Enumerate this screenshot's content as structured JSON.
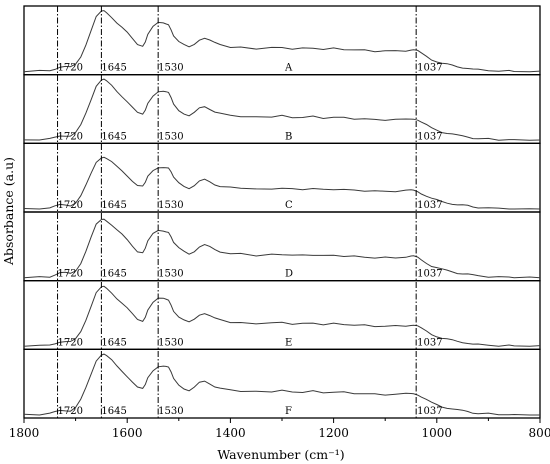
{
  "chart_data": {
    "type": "line",
    "title": "",
    "xlabel": "Wavenumber (cm⁻¹)",
    "ylabel": "Absorbance (a.u)",
    "xlim": [
      1800,
      800
    ],
    "x_reversed": true,
    "x_ticks": [
      "1800",
      "1600",
      "1400",
      "1200",
      "1000",
      "800"
    ],
    "x_tick_values": [
      1800,
      1600,
      1400,
      1200,
      1000,
      800
    ],
    "y_ticks_shown": false,
    "grid": false,
    "legend": "none",
    "reference_lines": [
      1735,
      1650,
      1540,
      1040
    ],
    "peak_labels": [
      "1720",
      "1645",
      "1530",
      "1037"
    ],
    "panels": [
      {
        "name": "A",
        "scale": 1.0
      },
      {
        "name": "B",
        "scale": 1.0
      },
      {
        "name": "C",
        "scale": 0.86
      },
      {
        "name": "D",
        "scale": 0.97
      },
      {
        "name": "E",
        "scale": 0.98
      },
      {
        "name": "F",
        "scale": 1.0
      }
    ],
    "spectrum_profile": {
      "x": [
        1800,
        1770,
        1750,
        1740,
        1730,
        1720,
        1710,
        1700,
        1690,
        1680,
        1670,
        1660,
        1650,
        1645,
        1640,
        1630,
        1620,
        1610,
        1600,
        1590,
        1580,
        1570,
        1565,
        1560,
        1550,
        1540,
        1530,
        1525,
        1520,
        1515,
        1510,
        1500,
        1490,
        1480,
        1470,
        1460,
        1450,
        1440,
        1430,
        1420,
        1400,
        1380,
        1350,
        1320,
        1300,
        1280,
        1260,
        1240,
        1220,
        1200,
        1180,
        1160,
        1140,
        1120,
        1100,
        1080,
        1060,
        1050,
        1045,
        1037,
        1030,
        1020,
        1010,
        1000,
        990,
        980,
        970,
        960,
        950,
        940,
        930,
        920,
        900,
        880,
        860,
        850,
        820,
        800
      ],
      "y": [
        0.0,
        0.01,
        0.02,
        0.05,
        0.08,
        0.08,
        0.07,
        0.12,
        0.25,
        0.45,
        0.68,
        0.9,
        0.99,
        1.0,
        0.97,
        0.9,
        0.81,
        0.73,
        0.64,
        0.54,
        0.45,
        0.43,
        0.5,
        0.62,
        0.74,
        0.8,
        0.8,
        0.79,
        0.78,
        0.7,
        0.6,
        0.5,
        0.44,
        0.4,
        0.45,
        0.53,
        0.56,
        0.52,
        0.47,
        0.44,
        0.41,
        0.4,
        0.38,
        0.39,
        0.4,
        0.38,
        0.38,
        0.39,
        0.37,
        0.38,
        0.37,
        0.36,
        0.35,
        0.34,
        0.34,
        0.34,
        0.35,
        0.36,
        0.36,
        0.34,
        0.3,
        0.25,
        0.2,
        0.17,
        0.14,
        0.12,
        0.1,
        0.08,
        0.07,
        0.06,
        0.04,
        0.03,
        0.02,
        0.01,
        0.01,
        0.0,
        0.0,
        0.0
      ]
    }
  }
}
